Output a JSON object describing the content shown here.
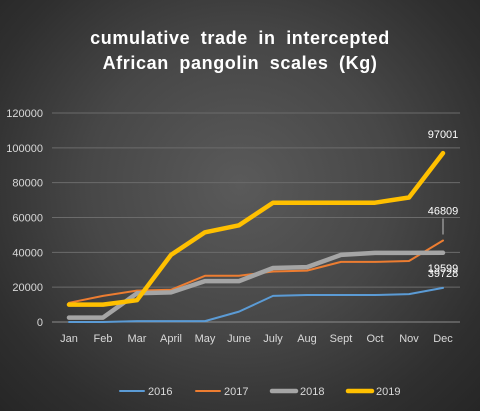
{
  "chart_data": {
    "type": "line",
    "title_lines": [
      "cumulative trade in intercepted",
      "African pangolin scales (Kg)"
    ],
    "xlabel": "",
    "ylabel": "",
    "categories": [
      "Jan",
      "Feb",
      "Mar",
      "April",
      "May",
      "June",
      "July",
      "Aug",
      "Sept",
      "Oct",
      "Nov",
      "Dec"
    ],
    "ylim": [
      0,
      120000
    ],
    "yticks": [
      "0",
      "20000",
      "40000",
      "60000",
      "80000",
      "100000",
      "120000"
    ],
    "grid": "horizontal",
    "legend_position": "bottom",
    "series": [
      {
        "name": "2016",
        "color": "#5b9bd5",
        "values": [
          0,
          0,
          500,
          500,
          500,
          6000,
          15000,
          15500,
          15500,
          15500,
          16000,
          19599
        ],
        "end_label": "19599"
      },
      {
        "name": "2017",
        "color": "#ed7d31",
        "values": [
          11000,
          15000,
          18000,
          18500,
          26500,
          26500,
          29000,
          29500,
          34500,
          34500,
          35000,
          46809
        ],
        "end_label": "46809"
      },
      {
        "name": "2018",
        "color": "#a5a5a5",
        "values": [
          2500,
          2500,
          16500,
          17000,
          23500,
          23500,
          31000,
          31500,
          38500,
          39700,
          39700,
          39728
        ],
        "end_label": "39728"
      },
      {
        "name": "2019",
        "color": "#ffc000",
        "values": [
          10000,
          10000,
          12500,
          38500,
          51500,
          55500,
          68500,
          68500,
          68500,
          68500,
          71500,
          97001
        ],
        "end_label": "97001"
      }
    ]
  }
}
